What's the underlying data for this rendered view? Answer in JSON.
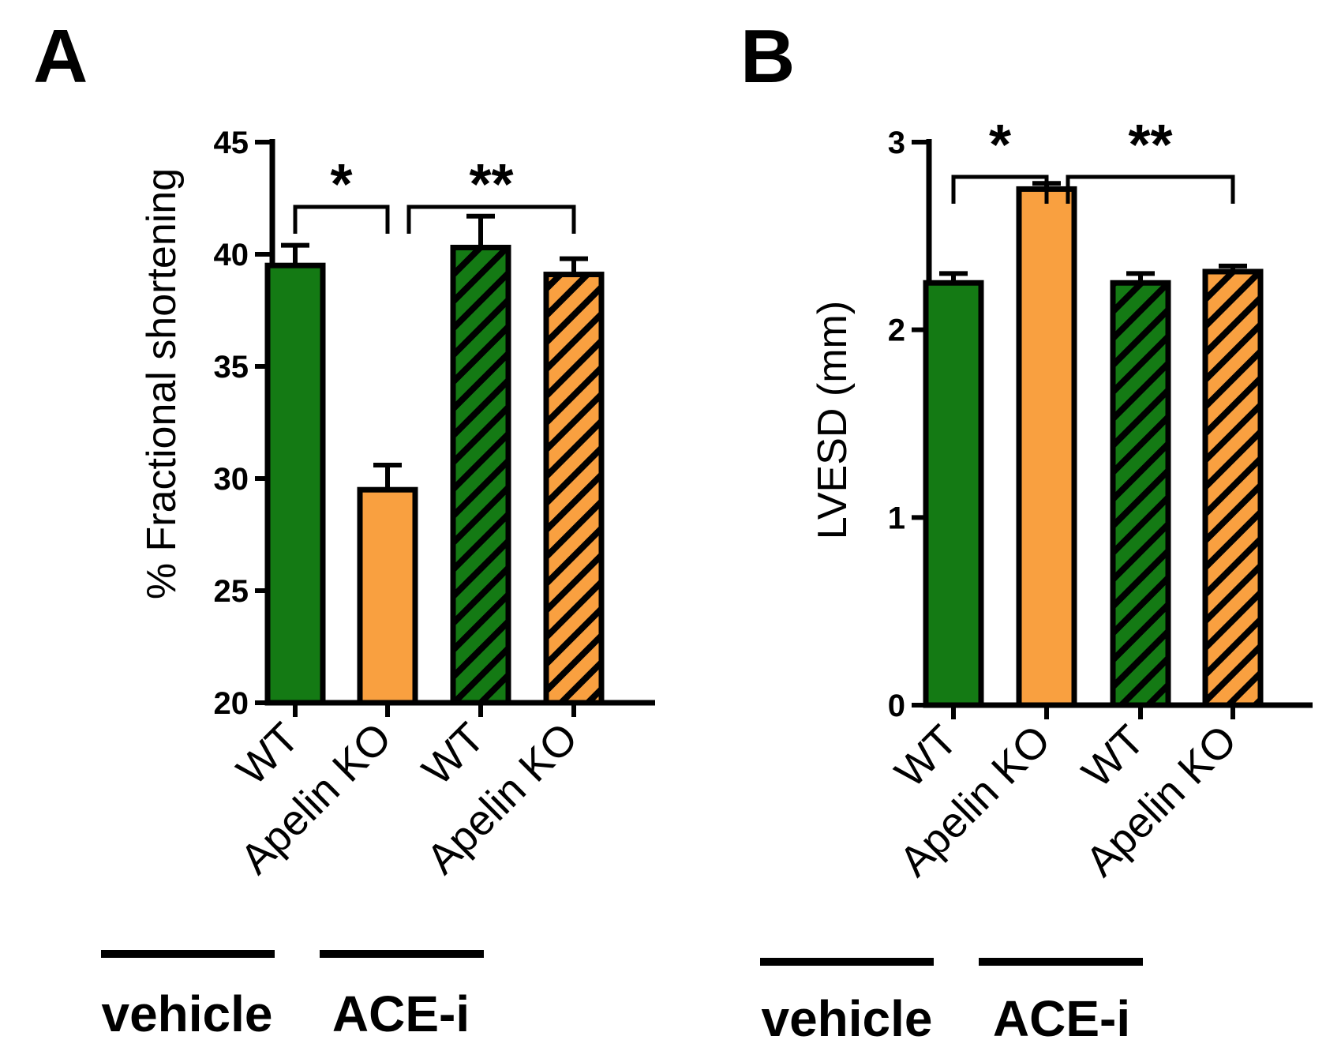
{
  "panels": [
    {
      "letter": "A"
    },
    {
      "letter": "B"
    }
  ],
  "groups": [
    "vehicle",
    "ACE-i"
  ],
  "colors": {
    "wt": "#147a14",
    "ko": "#f9a040",
    "edge": "#000000",
    "hatch": "#000000"
  },
  "chart_data": [
    {
      "type": "bar",
      "panel": "A",
      "ylabel": "% Fractional shortening",
      "ylim": [
        20,
        45
      ],
      "yticks": [
        20,
        25,
        30,
        35,
        40,
        45
      ],
      "categories": [
        "WT",
        "Apelin KO",
        "WT",
        "Apelin KO"
      ],
      "treatment": [
        "vehicle",
        "vehicle",
        "ACE-i",
        "ACE-i"
      ],
      "values": [
        39.5,
        29.5,
        40.3,
        39.1
      ],
      "errors": [
        0.9,
        1.1,
        1.4,
        0.7
      ],
      "hatched": [
        false,
        false,
        true,
        true
      ],
      "significance": [
        {
          "label": "*",
          "from": 0,
          "to": [
            1
          ]
        },
        {
          "label": "**",
          "from": 1,
          "to": [
            2,
            3
          ]
        }
      ]
    },
    {
      "type": "bar",
      "panel": "B",
      "ylabel": "LVESD (mm)",
      "ylim": [
        0,
        3
      ],
      "yticks": [
        0,
        1,
        2,
        3
      ],
      "categories": [
        "WT",
        "Apelin KO",
        "WT",
        "Apelin KO"
      ],
      "treatment": [
        "vehicle",
        "vehicle",
        "ACE-i",
        "ACE-i"
      ],
      "values": [
        2.25,
        2.75,
        2.25,
        2.31
      ],
      "errors": [
        0.05,
        0.03,
        0.05,
        0.03
      ],
      "hatched": [
        false,
        false,
        true,
        true
      ],
      "significance": [
        {
          "label": "*",
          "from": 0,
          "to": [
            1
          ]
        },
        {
          "label": "**",
          "from": 1,
          "to": [
            2,
            3
          ]
        }
      ]
    }
  ]
}
